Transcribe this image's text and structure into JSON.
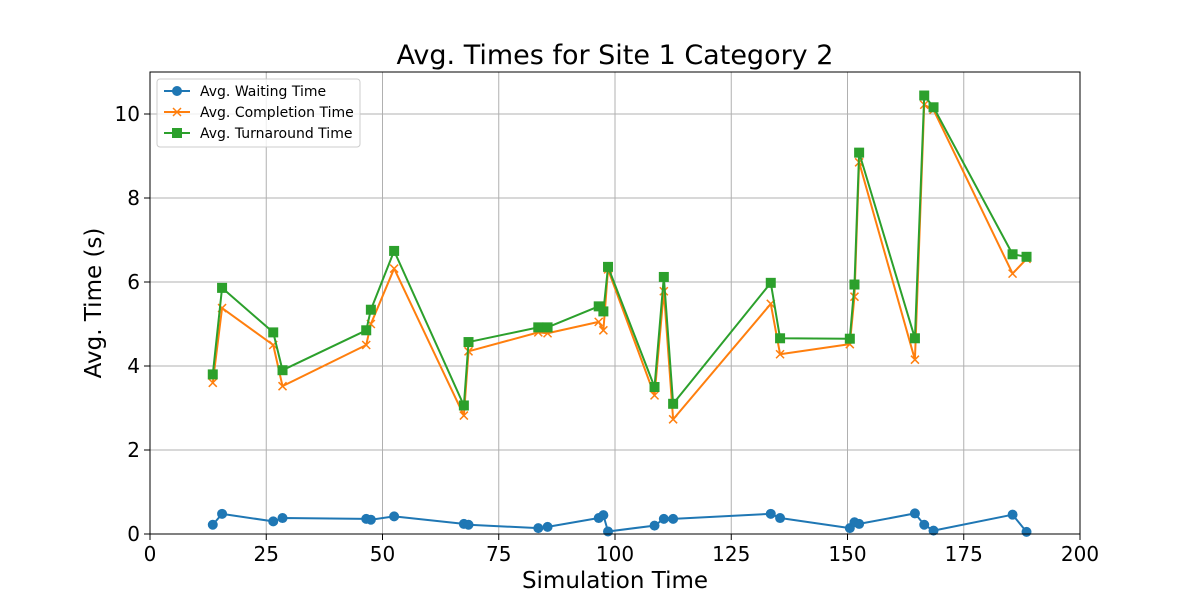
{
  "chart_data": {
    "type": "line",
    "title": "Avg. Times for Site 1 Category 2",
    "xlabel": "Simulation Time",
    "ylabel": "Avg. Time (s)",
    "xlim": [
      0,
      200
    ],
    "ylim": [
      0,
      11
    ],
    "xticks": [
      0,
      25,
      50,
      75,
      100,
      125,
      150,
      175,
      200
    ],
    "yticks": [
      0,
      2,
      4,
      6,
      8,
      10
    ],
    "grid": true,
    "legend_position": "top-left",
    "series": [
      {
        "name": "Avg. Waiting Time",
        "color": "#1f77b4",
        "marker": "circle",
        "x": [
          13.5,
          15.5,
          26.5,
          28.5,
          46.5,
          47.5,
          52.5,
          67.5,
          68.5,
          83.5,
          85.5,
          96.5,
          97.5,
          98.5,
          108.5,
          110.5,
          112.5,
          133.5,
          135.5,
          150.5,
          151.5,
          152.5,
          164.5,
          166.5,
          168.5,
          185.5,
          188.5
        ],
        "y": [
          0.22,
          0.48,
          0.3,
          0.38,
          0.36,
          0.34,
          0.42,
          0.24,
          0.22,
          0.14,
          0.17,
          0.38,
          0.45,
          0.06,
          0.2,
          0.36,
          0.36,
          0.48,
          0.38,
          0.14,
          0.28,
          0.24,
          0.49,
          0.22,
          0.08,
          0.46,
          0.05
        ]
      },
      {
        "name": "Avg. Completion Time",
        "color": "#ff7f0e",
        "marker": "x",
        "x": [
          13.5,
          15.5,
          26.5,
          28.5,
          46.5,
          47.5,
          52.5,
          67.5,
          68.5,
          83.5,
          85.5,
          96.5,
          97.5,
          98.5,
          108.5,
          110.5,
          112.5,
          133.5,
          135.5,
          150.5,
          151.5,
          152.5,
          164.5,
          166.5,
          168.5,
          185.5,
          188.5
        ],
        "y": [
          3.6,
          5.38,
          4.5,
          3.52,
          4.5,
          5.0,
          6.32,
          2.82,
          4.35,
          4.8,
          4.78,
          5.05,
          4.85,
          6.3,
          3.3,
          5.78,
          2.73,
          5.48,
          4.28,
          4.52,
          5.65,
          8.85,
          4.15,
          10.22,
          10.1,
          6.2,
          6.55
        ]
      },
      {
        "name": "Avg. Turnaround Time",
        "color": "#2ca02c",
        "marker": "square",
        "x": [
          13.5,
          15.5,
          26.5,
          28.5,
          46.5,
          47.5,
          52.5,
          67.5,
          68.5,
          83.5,
          85.5,
          96.5,
          97.5,
          98.5,
          108.5,
          110.5,
          112.5,
          133.5,
          135.5,
          150.5,
          151.5,
          152.5,
          164.5,
          166.5,
          168.5,
          185.5,
          188.5
        ],
        "y": [
          3.8,
          5.86,
          4.8,
          3.9,
          4.85,
          5.34,
          6.74,
          3.06,
          4.57,
          4.92,
          4.92,
          5.42,
          5.3,
          6.36,
          3.5,
          6.12,
          3.1,
          5.98,
          4.66,
          4.65,
          5.94,
          9.08,
          4.66,
          10.44,
          10.16,
          6.66,
          6.6
        ]
      }
    ]
  }
}
